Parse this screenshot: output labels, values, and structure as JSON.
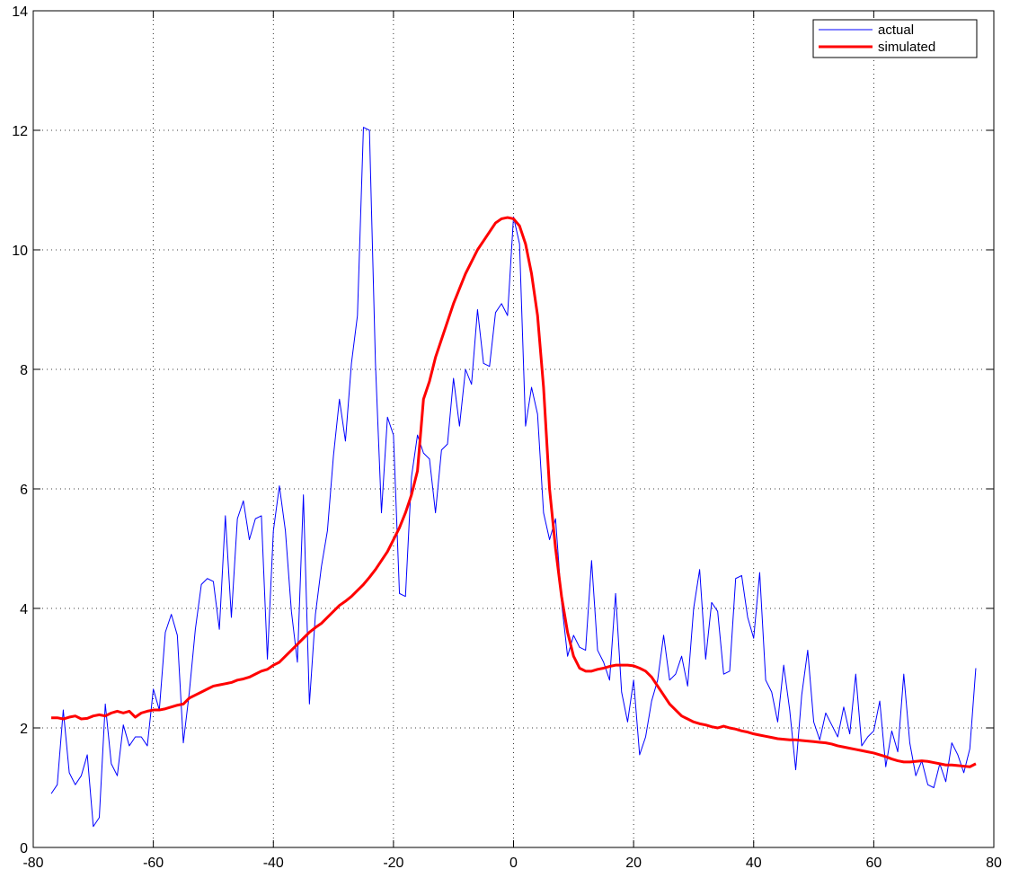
{
  "chart_data": {
    "type": "line",
    "x": [
      -77,
      -76,
      -75,
      -74,
      -73,
      -72,
      -71,
      -70,
      -69,
      -68,
      -67,
      -66,
      -65,
      -64,
      -63,
      -62,
      -61,
      -60,
      -59,
      -58,
      -57,
      -56,
      -55,
      -54,
      -53,
      -52,
      -51,
      -50,
      -49,
      -48,
      -47,
      -46,
      -45,
      -44,
      -43,
      -42,
      -41,
      -40,
      -39,
      -38,
      -37,
      -36,
      -35,
      -34,
      -33,
      -32,
      -31,
      -30,
      -29,
      -28,
      -27,
      -26,
      -25,
      -24,
      -23,
      -22,
      -21,
      -20,
      -19,
      -18,
      -17,
      -16,
      -15,
      -14,
      -13,
      -12,
      -11,
      -10,
      -9,
      -8,
      -7,
      -6,
      -5,
      -4,
      -3,
      -2,
      -1,
      0,
      1,
      2,
      3,
      4,
      5,
      6,
      7,
      8,
      9,
      10,
      11,
      12,
      13,
      14,
      15,
      16,
      17,
      18,
      19,
      20,
      21,
      22,
      23,
      24,
      25,
      26,
      27,
      28,
      29,
      30,
      31,
      32,
      33,
      34,
      35,
      36,
      37,
      38,
      39,
      40,
      41,
      42,
      43,
      44,
      45,
      46,
      47,
      48,
      49,
      50,
      51,
      52,
      53,
      54,
      55,
      56,
      57,
      58,
      59,
      60,
      61,
      62,
      63,
      64,
      65,
      66,
      67,
      68,
      69,
      70,
      71,
      72,
      73,
      74,
      75,
      76,
      77
    ],
    "series": [
      {
        "name": "actual",
        "color": "#0000ff",
        "width": 1,
        "values": [
          0.9,
          1.05,
          2.3,
          1.25,
          1.05,
          1.2,
          1.55,
          0.35,
          0.5,
          2.4,
          1.4,
          1.2,
          2.05,
          1.7,
          1.85,
          1.85,
          1.7,
          2.65,
          2.3,
          3.6,
          3.9,
          3.55,
          1.75,
          2.6,
          3.65,
          4.4,
          4.5,
          4.45,
          3.65,
          5.55,
          3.85,
          5.5,
          5.8,
          5.15,
          5.5,
          5.55,
          3.15,
          5.3,
          6.05,
          5.3,
          3.95,
          3.1,
          5.9,
          2.4,
          3.9,
          4.7,
          5.3,
          6.55,
          7.5,
          6.8,
          8.1,
          8.9,
          12.05,
          12.0,
          8.1,
          5.6,
          7.2,
          6.9,
          4.25,
          4.2,
          6.2,
          6.9,
          6.6,
          6.5,
          5.6,
          6.65,
          6.75,
          7.85,
          7.05,
          8.0,
          7.75,
          9.0,
          8.1,
          8.05,
          8.95,
          9.1,
          8.9,
          10.55,
          10.1,
          7.05,
          7.7,
          7.25,
          5.6,
          5.15,
          5.5,
          4.1,
          3.2,
          3.55,
          3.35,
          3.3,
          4.8,
          3.3,
          3.1,
          2.8,
          4.25,
          2.6,
          2.1,
          2.8,
          1.55,
          1.85,
          2.45,
          2.8,
          3.55,
          2.8,
          2.9,
          3.2,
          2.7,
          4.0,
          4.65,
          3.15,
          4.1,
          3.95,
          2.9,
          2.95,
          4.5,
          4.55,
          3.85,
          3.5,
          4.6,
          2.8,
          2.6,
          2.1,
          3.05,
          2.3,
          1.3,
          2.55,
          3.3,
          2.1,
          1.8,
          2.25,
          2.05,
          1.85,
          2.35,
          1.9,
          2.9,
          1.7,
          1.85,
          1.95,
          2.45,
          1.35,
          1.95,
          1.6,
          2.9,
          1.75,
          1.2,
          1.45,
          1.05,
          1.0,
          1.4,
          1.1,
          1.75,
          1.55,
          1.25,
          1.65,
          3.0
        ]
      },
      {
        "name": "simulated",
        "color": "#ff0000",
        "width": 3,
        "values": [
          2.17,
          2.17,
          2.15,
          2.18,
          2.2,
          2.15,
          2.16,
          2.2,
          2.22,
          2.2,
          2.25,
          2.28,
          2.25,
          2.28,
          2.18,
          2.25,
          2.28,
          2.3,
          2.3,
          2.32,
          2.35,
          2.38,
          2.4,
          2.5,
          2.55,
          2.6,
          2.65,
          2.7,
          2.72,
          2.74,
          2.76,
          2.8,
          2.82,
          2.85,
          2.9,
          2.95,
          2.98,
          3.05,
          3.1,
          3.2,
          3.3,
          3.4,
          3.5,
          3.6,
          3.68,
          3.75,
          3.85,
          3.95,
          4.05,
          4.12,
          4.2,
          4.3,
          4.4,
          4.52,
          4.65,
          4.8,
          4.95,
          5.15,
          5.35,
          5.6,
          5.9,
          6.3,
          7.5,
          7.8,
          8.2,
          8.5,
          8.8,
          9.1,
          9.35,
          9.6,
          9.8,
          10.0,
          10.15,
          10.3,
          10.45,
          10.52,
          10.54,
          10.52,
          10.4,
          10.1,
          9.6,
          8.9,
          7.7,
          6.0,
          5.0,
          4.2,
          3.6,
          3.2,
          3.0,
          2.95,
          2.95,
          2.98,
          3.0,
          3.03,
          3.05,
          3.05,
          3.05,
          3.04,
          3.0,
          2.95,
          2.85,
          2.7,
          2.55,
          2.4,
          2.3,
          2.2,
          2.15,
          2.1,
          2.07,
          2.05,
          2.02,
          2.0,
          2.03,
          2.0,
          1.98,
          1.95,
          1.93,
          1.9,
          1.88,
          1.86,
          1.84,
          1.82,
          1.81,
          1.8,
          1.8,
          1.79,
          1.78,
          1.77,
          1.76,
          1.75,
          1.73,
          1.7,
          1.68,
          1.66,
          1.64,
          1.62,
          1.6,
          1.58,
          1.55,
          1.52,
          1.48,
          1.45,
          1.43,
          1.43,
          1.44,
          1.45,
          1.44,
          1.42,
          1.4,
          1.38,
          1.38,
          1.37,
          1.36,
          1.35,
          1.4
        ]
      }
    ],
    "xlim": [
      -80,
      80
    ],
    "xticks": [
      -80,
      -60,
      -40,
      -20,
      0,
      20,
      40,
      60,
      80
    ],
    "ylim": [
      0,
      14
    ],
    "yticks": [
      0,
      2,
      4,
      6,
      8,
      10,
      12,
      14
    ],
    "grid": true,
    "legend": "upper right"
  }
}
